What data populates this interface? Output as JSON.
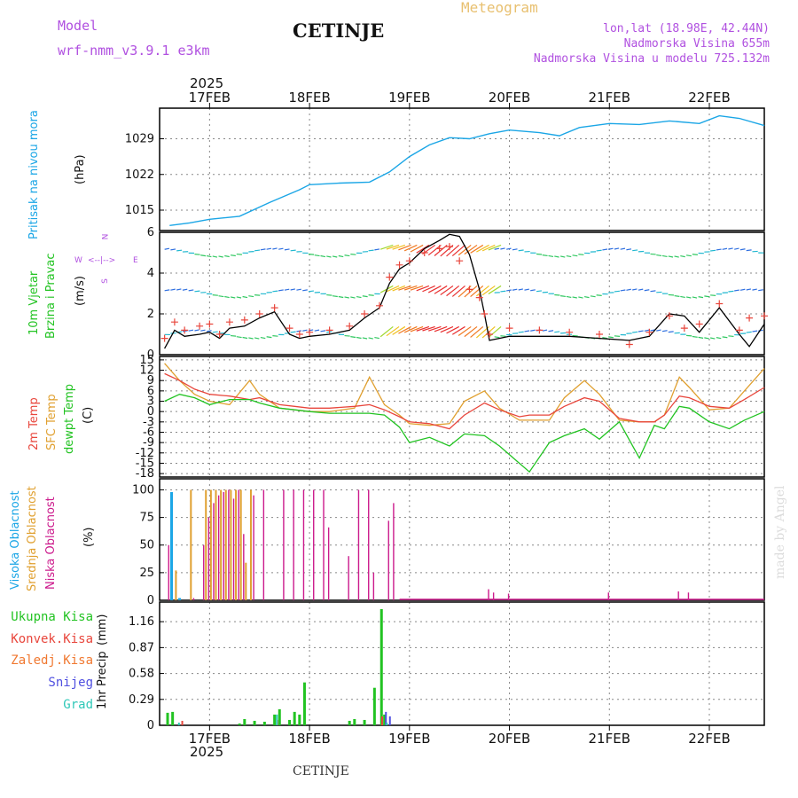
{
  "header": {
    "model_label": "Model",
    "model_name": "wrf-nmm_v3.9.1 e3km",
    "station": "CETINJE",
    "meteogram": "Meteogram",
    "lonlat": "lon,lat (18.98E, 42.44N)",
    "altitude": "Nadmorska Visina 655m",
    "model_altitude": "Nadmorska Visina u modelu 725.132m",
    "year": "2025",
    "footer_station": "CETINJE",
    "watermark": "made by Angel"
  },
  "colors": {
    "pressure": "#1ba6e6",
    "wind_speed": "#000000",
    "gust": "#e8463c",
    "t2m": "#e8463c",
    "sfc_temp": "#e0a030",
    "dewpt": "#22c322",
    "cloud_high": "#1ba6e6",
    "cloud_mid": "#e0a030",
    "cloud_low": "#cc1a8c",
    "precip_total": "#22c322",
    "precip_conv": "#e8463c",
    "precip_frozen": "#f07830",
    "snow": "#5050e0",
    "hail": "#30c8b8",
    "label_purple": "#b050e0"
  },
  "chart_data": [
    {
      "type": "line",
      "panel": "pressure",
      "ylabel_main": "Pritisak na nivou mora",
      "ylabel_unit": "(hPa)",
      "yticks": [
        1015,
        1022,
        1029
      ],
      "ylim": [
        1011,
        1035
      ],
      "x_days": [
        16.6,
        16.8,
        17.0,
        17.3,
        17.6,
        17.9,
        18.0,
        18.3,
        18.6,
        18.8,
        19.0,
        19.2,
        19.4,
        19.6,
        19.8,
        20.0,
        20.3,
        20.5,
        20.7,
        21.0,
        21.3,
        21.6,
        21.9,
        22.1,
        22.3,
        22.55
      ],
      "values": [
        1012.0,
        1012.5,
        1013.2,
        1013.8,
        1016.5,
        1019.0,
        1020.0,
        1020.3,
        1020.5,
        1022.5,
        1025.5,
        1027.8,
        1029.2,
        1029.0,
        1030.0,
        1030.7,
        1030.2,
        1029.6,
        1031.2,
        1032.0,
        1031.8,
        1032.5,
        1032.0,
        1033.5,
        1033.0,
        1031.6
      ]
    },
    {
      "type": "line",
      "panel": "wind",
      "ylabel_main": "10m Vjetar",
      "ylabel_sub": "Brzina i Pravac",
      "ylabel_unit": "(m/s)",
      "direction_legend": [
        "N",
        "W",
        "E",
        "S"
      ],
      "yticks": [
        0,
        2,
        4,
        6
      ],
      "ylim": [
        0,
        6
      ],
      "x_days": [
        16.55,
        16.65,
        16.75,
        16.9,
        17.0,
        17.1,
        17.2,
        17.35,
        17.5,
        17.65,
        17.8,
        17.9,
        18.0,
        18.2,
        18.4,
        18.55,
        18.7,
        18.8,
        18.9,
        19.0,
        19.15,
        19.3,
        19.4,
        19.5,
        19.6,
        19.7,
        19.75,
        19.8,
        20.0,
        20.3,
        20.6,
        20.9,
        21.2,
        21.4,
        21.6,
        21.75,
        21.9,
        22.1,
        22.3,
        22.4,
        22.55
      ],
      "series": [
        {
          "name": "speed",
          "values": [
            0.3,
            1.2,
            0.9,
            1.0,
            1.1,
            0.8,
            1.3,
            1.4,
            1.8,
            2.1,
            1.0,
            0.8,
            0.9,
            1.0,
            1.2,
            1.8,
            2.3,
            3.5,
            4.2,
            4.5,
            5.2,
            5.6,
            5.9,
            5.8,
            4.9,
            3.2,
            2.0,
            0.7,
            0.9,
            0.9,
            0.9,
            0.8,
            0.7,
            0.9,
            2.0,
            1.9,
            1.1,
            2.3,
            1.0,
            0.4,
            1.5
          ]
        },
        {
          "name": "gust",
          "values": [
            0.8,
            1.6,
            1.2,
            1.4,
            1.5,
            1.0,
            1.6,
            1.7,
            2.0,
            2.3,
            1.3,
            1.0,
            1.1,
            1.2,
            1.4,
            2.0,
            2.4,
            3.8,
            4.4,
            4.6,
            5.0,
            5.2,
            5.3,
            4.6,
            3.2,
            2.8,
            2.0,
            1.0,
            1.3,
            1.2,
            1.1,
            1.0,
            0.5,
            1.1,
            1.9,
            1.3,
            1.5,
            2.5,
            1.2,
            1.8,
            1.9
          ]
        }
      ],
      "arrow_rows": [
        1.0,
        3.0,
        5.0
      ]
    },
    {
      "type": "line",
      "panel": "temperature",
      "ylabel_t2m": "2m Temp",
      "ylabel_sfc": "SFC Temp",
      "ylabel_dew": "dewpt Temp",
      "ylabel_unit": "(C)",
      "yticks": [
        -18,
        -15,
        -12,
        -9,
        -6,
        -3,
        0,
        3,
        6,
        9,
        12,
        15
      ],
      "ylim": [
        -19,
        16
      ],
      "x_days": [
        16.55,
        16.7,
        16.85,
        17.0,
        17.2,
        17.4,
        17.5,
        17.7,
        17.85,
        18.0,
        18.2,
        18.45,
        18.6,
        18.75,
        18.9,
        19.0,
        19.2,
        19.4,
        19.55,
        19.75,
        19.9,
        20.1,
        20.2,
        20.4,
        20.55,
        20.75,
        20.9,
        21.1,
        21.3,
        21.45,
        21.55,
        21.7,
        21.8,
        22.0,
        22.2,
        22.35,
        22.55
      ],
      "series": [
        {
          "name": "t2m",
          "values": [
            11.0,
            9.0,
            6.5,
            5.0,
            4.5,
            3.5,
            4.0,
            2.0,
            1.5,
            1.0,
            1.0,
            1.5,
            2.0,
            0.5,
            -1.5,
            -3.0,
            -3.5,
            -5.0,
            -1.0,
            2.5,
            0.5,
            -1.5,
            -1.0,
            -1.0,
            1.5,
            4.0,
            3.0,
            -2.0,
            -3.0,
            -3.0,
            -1.0,
            4.5,
            4.0,
            1.5,
            1.0,
            3.5,
            7.0
          ]
        },
        {
          "name": "sfc",
          "values": [
            14.0,
            9.0,
            5.0,
            3.0,
            2.0,
            9.0,
            5.0,
            1.0,
            0.5,
            0.0,
            0.0,
            1.0,
            10.0,
            2.0,
            -1.0,
            -3.5,
            -4.0,
            -3.5,
            3.0,
            6.0,
            1.0,
            -2.5,
            -2.5,
            -2.5,
            4.0,
            9.0,
            5.0,
            -2.5,
            -3.0,
            -3.0,
            -1.0,
            10.0,
            7.0,
            0.5,
            1.0,
            6.0,
            12.5
          ]
        },
        {
          "name": "dewpt",
          "values": [
            3.0,
            5.0,
            4.0,
            2.0,
            3.5,
            3.5,
            2.5,
            1.0,
            0.5,
            0.0,
            -0.5,
            -0.5,
            -0.5,
            -1.0,
            -4.5,
            -9.0,
            -7.5,
            -10.0,
            -6.5,
            -7.0,
            -10.0,
            -15.0,
            -17.5,
            -9.0,
            -7.0,
            -5.0,
            -8.0,
            -3.0,
            -13.5,
            -4.0,
            -5.0,
            1.5,
            1.0,
            -3.0,
            -5.0,
            -2.5,
            0.0
          ]
        }
      ]
    },
    {
      "type": "bar",
      "panel": "cloud",
      "ylabel_high": "Visoka Oblacnost",
      "ylabel_mid": "Srednja Oblacnost",
      "ylabel_low": "Niska Oblacnost",
      "ylabel_unit": "(%)",
      "yticks": [
        0,
        25,
        50,
        75,
        100
      ],
      "ylim": [
        0,
        110
      ],
      "high": {
        "x_days": [
          16.62,
          16.7
        ],
        "values": [
          98,
          2
        ]
      },
      "mid": {
        "x_days": [
          16.65,
          16.8,
          16.95,
          17.0,
          17.05,
          17.1,
          17.15,
          17.2,
          17.25,
          17.3,
          17.35,
          17.4
        ],
        "values": [
          27,
          100,
          100,
          100,
          100,
          100,
          100,
          100,
          100,
          100,
          34,
          100
        ]
      },
      "low": {
        "x_days": [
          16.6,
          16.85,
          16.95,
          17.0,
          17.05,
          17.1,
          17.15,
          17.2,
          17.25,
          17.3,
          17.35,
          17.45,
          17.55,
          17.75,
          17.85,
          17.95,
          18.05,
          18.15,
          18.2,
          18.4,
          18.5,
          18.6,
          18.65,
          18.8,
          18.85,
          19.8,
          19.85,
          20.0,
          21.0,
          21.7,
          21.8
        ],
        "values": [
          50,
          2,
          50,
          75,
          88,
          95,
          98,
          100,
          92,
          100,
          60,
          95,
          100,
          100,
          100,
          100,
          100,
          100,
          66,
          40,
          100,
          100,
          25,
          72,
          88,
          10,
          7,
          6,
          7,
          8,
          7
        ]
      },
      "baseline_start_day": 18.9
    },
    {
      "type": "bar",
      "panel": "precip",
      "ylabel_main": "1hr Precip",
      "ylabel_unit": "(mm)",
      "legend": [
        "Ukupna Kisa",
        "Konvek.Kisa",
        "Zaledj.Kisa",
        "Snijeg",
        "Grad"
      ],
      "yticks": [
        0,
        0.29,
        0.58,
        0.87,
        1.16
      ],
      "ylim": [
        0,
        1.38
      ],
      "total": {
        "x_days": [
          16.58,
          16.63,
          17.3,
          17.35,
          17.45,
          17.55,
          17.65,
          17.7,
          17.8,
          17.85,
          17.9,
          17.95,
          18.4,
          18.45,
          18.55,
          18.65,
          18.72,
          18.75
        ],
        "values": [
          0.14,
          0.15,
          0.02,
          0.07,
          0.05,
          0.04,
          0.12,
          0.18,
          0.06,
          0.15,
          0.12,
          0.48,
          0.05,
          0.07,
          0.06,
          0.42,
          1.3,
          0.12
        ]
      },
      "convective": {
        "x_days": [
          16.7,
          17.65,
          18.7
        ],
        "values": [
          0.05,
          0.06,
          0.1
        ]
      },
      "snow": {
        "x_days": [
          18.72,
          18.76
        ],
        "values": [
          0.15,
          0.1
        ]
      },
      "hail": {
        "x_days": [
          16.72,
          17.7,
          18.8
        ],
        "values": [
          0.03,
          0.12,
          0.03
        ]
      }
    }
  ],
  "x_axis": {
    "day_labels": [
      "17FEB",
      "18FEB",
      "19FEB",
      "20FEB",
      "21FEB",
      "22FEB"
    ],
    "day_positions": [
      17,
      18,
      19,
      20,
      21,
      22
    ],
    "xlim": [
      16.5,
      22.55
    ]
  }
}
